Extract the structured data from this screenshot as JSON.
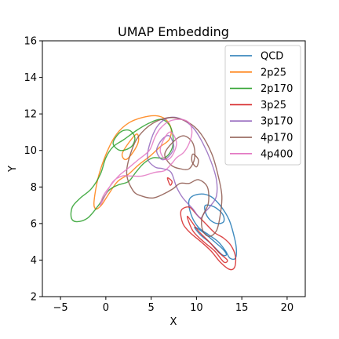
{
  "chart_data": {
    "type": "line",
    "subtype": "kde-contour",
    "title": "UMAP Embedding",
    "xlabel": "X",
    "ylabel": "Y",
    "xlim": [
      -7,
      22
    ],
    "ylim": [
      2,
      16
    ],
    "xticks": [
      -5,
      0,
      5,
      10,
      15,
      20
    ],
    "yticks": [
      2,
      4,
      6,
      8,
      10,
      12,
      14,
      16
    ],
    "grid": false,
    "legend_position": "top-right",
    "series": [
      {
        "name": "QCD",
        "color": "#1f77b4",
        "contours": [
          [
            [
              9.2,
              7.3
            ],
            [
              10.2,
              7.6
            ],
            [
              11.5,
              7.5
            ],
            [
              12.6,
              7.0
            ],
            [
              13.6,
              6.2
            ],
            [
              14.2,
              5.2
            ],
            [
              14.4,
              4.6
            ],
            [
              14.3,
              4.1
            ],
            [
              13.7,
              4.1
            ],
            [
              13.2,
              4.5
            ],
            [
              12.4,
              5.0
            ],
            [
              11.3,
              5.4
            ],
            [
              10.2,
              5.8
            ],
            [
              9.4,
              6.5
            ],
            [
              9.2,
              7.3
            ]
          ],
          [
            [
              11.0,
              7.0
            ],
            [
              12.0,
              6.9
            ],
            [
              12.9,
              6.5
            ],
            [
              13.0,
              6.1
            ],
            [
              12.3,
              6.0
            ],
            [
              11.5,
              6.2
            ],
            [
              11.0,
              6.6
            ],
            [
              11.0,
              7.0
            ]
          ],
          [
            [
              9.8,
              5.8
            ],
            [
              10.8,
              5.5
            ],
            [
              12.0,
              5.0
            ],
            [
              12.9,
              4.6
            ],
            [
              13.3,
              4.3
            ],
            [
              12.8,
              4.3
            ],
            [
              11.6,
              4.9
            ],
            [
              10.4,
              5.4
            ],
            [
              9.8,
              5.8
            ]
          ]
        ]
      },
      {
        "name": "2p25",
        "color": "#ff7f0e",
        "contours": [
          [
            [
              -1.3,
              7.2
            ],
            [
              -0.8,
              8.6
            ],
            [
              0.2,
              10.0
            ],
            [
              1.2,
              10.9
            ],
            [
              2.5,
              11.5
            ],
            [
              4.0,
              11.8
            ],
            [
              5.5,
              11.9
            ],
            [
              6.6,
              11.7
            ],
            [
              7.2,
              11.2
            ],
            [
              7.0,
              10.6
            ],
            [
              6.0,
              10.2
            ],
            [
              4.9,
              9.7
            ],
            [
              3.6,
              9.2
            ],
            [
              2.5,
              8.7
            ],
            [
              1.3,
              8.3
            ],
            [
              0.3,
              7.6
            ],
            [
              -0.5,
              7.0
            ],
            [
              -1.1,
              6.8
            ],
            [
              -1.3,
              7.2
            ]
          ],
          [
            [
              1.8,
              9.8
            ],
            [
              2.5,
              10.4
            ],
            [
              3.4,
              10.9
            ],
            [
              3.6,
              10.5
            ],
            [
              3.0,
              9.9
            ],
            [
              2.2,
              9.5
            ],
            [
              1.8,
              9.8
            ]
          ]
        ]
      },
      {
        "name": "2p170",
        "color": "#2ca02c",
        "contours": [
          [
            [
              -3.8,
              6.3
            ],
            [
              -3.2,
              6.1
            ],
            [
              -2.0,
              6.3
            ],
            [
              -0.8,
              7.0
            ],
            [
              0.3,
              7.8
            ],
            [
              1.3,
              8.1
            ],
            [
              2.5,
              8.3
            ],
            [
              3.3,
              8.8
            ],
            [
              4.2,
              9.3
            ],
            [
              5.2,
              9.6
            ],
            [
              6.5,
              9.6
            ],
            [
              7.3,
              10.1
            ],
            [
              7.4,
              10.8
            ],
            [
              7.0,
              11.4
            ],
            [
              6.1,
              11.7
            ],
            [
              4.8,
              11.5
            ],
            [
              3.4,
              11.1
            ],
            [
              2.0,
              10.6
            ],
            [
              0.8,
              10.2
            ],
            [
              0.0,
              9.6
            ],
            [
              -0.6,
              8.7
            ],
            [
              -1.6,
              7.9
            ],
            [
              -2.8,
              7.4
            ],
            [
              -3.7,
              6.9
            ],
            [
              -3.8,
              6.3
            ]
          ],
          [
            [
              0.8,
              10.4
            ],
            [
              1.6,
              11.0
            ],
            [
              2.6,
              11.1
            ],
            [
              3.2,
              10.7
            ],
            [
              2.8,
              10.2
            ],
            [
              1.6,
              10.0
            ],
            [
              0.8,
              10.4
            ]
          ]
        ]
      },
      {
        "name": "3p25",
        "color": "#d62728",
        "contours": [
          [
            [
              8.3,
              6.7
            ],
            [
              9.2,
              6.9
            ],
            [
              10.0,
              6.5
            ],
            [
              11.0,
              6.0
            ],
            [
              12.0,
              5.5
            ],
            [
              13.0,
              5.2
            ],
            [
              13.8,
              4.8
            ],
            [
              14.3,
              4.2
            ],
            [
              14.2,
              3.6
            ],
            [
              13.6,
              3.5
            ],
            [
              12.6,
              3.9
            ],
            [
              11.6,
              4.5
            ],
            [
              10.5,
              5.0
            ],
            [
              9.3,
              5.5
            ],
            [
              8.5,
              6.0
            ],
            [
              8.3,
              6.7
            ]
          ],
          [
            [
              9.0,
              6.4
            ],
            [
              10.2,
              5.6
            ],
            [
              11.4,
              5.0
            ],
            [
              12.5,
              4.4
            ],
            [
              13.4,
              4.0
            ],
            [
              13.0,
              3.9
            ],
            [
              12.0,
              4.5
            ],
            [
              10.8,
              5.0
            ],
            [
              9.6,
              5.6
            ],
            [
              9.0,
              6.4
            ]
          ],
          [
            [
              6.8,
              8.5
            ],
            [
              7.3,
              8.3
            ],
            [
              7.1,
              8.1
            ],
            [
              6.8,
              8.5
            ]
          ]
        ]
      },
      {
        "name": "3p170",
        "color": "#9467bd",
        "contours": [
          [
            [
              4.6,
              9.6
            ],
            [
              5.0,
              10.6
            ],
            [
              5.8,
              11.4
            ],
            [
              7.0,
              11.8
            ],
            [
              8.4,
              11.7
            ],
            [
              9.7,
              11.2
            ],
            [
              10.7,
              10.4
            ],
            [
              11.6,
              9.4
            ],
            [
              12.2,
              8.4
            ],
            [
              12.2,
              7.5
            ],
            [
              11.6,
              7.0
            ],
            [
              10.9,
              6.6
            ],
            [
              10.4,
              6.3
            ],
            [
              9.6,
              6.8
            ],
            [
              8.5,
              7.4
            ],
            [
              7.8,
              8.0
            ],
            [
              7.2,
              8.8
            ],
            [
              6.3,
              9.0
            ],
            [
              5.4,
              9.1
            ],
            [
              4.6,
              9.6
            ]
          ],
          [
            [
              5.6,
              10.0
            ],
            [
              6.2,
              10.6
            ],
            [
              7.0,
              10.8
            ],
            [
              7.5,
              10.2
            ],
            [
              7.0,
              9.7
            ],
            [
              6.2,
              9.5
            ],
            [
              5.6,
              10.0
            ]
          ]
        ]
      },
      {
        "name": "4p170",
        "color": "#8c564b",
        "contours": [
          [
            [
              2.3,
              8.8
            ],
            [
              3.0,
              10.2
            ],
            [
              4.0,
              11.0
            ],
            [
              5.6,
              11.6
            ],
            [
              7.4,
              11.8
            ],
            [
              9.2,
              11.5
            ],
            [
              10.5,
              10.9
            ],
            [
              11.7,
              9.8
            ],
            [
              12.4,
              8.6
            ],
            [
              12.8,
              7.5
            ],
            [
              12.6,
              6.4
            ],
            [
              12.2,
              5.6
            ],
            [
              11.4,
              5.3
            ],
            [
              10.7,
              5.6
            ],
            [
              10.6,
              6.3
            ],
            [
              11.3,
              7.1
            ],
            [
              11.2,
              8.0
            ],
            [
              10.2,
              8.4
            ],
            [
              9.2,
              8.2
            ],
            [
              8.2,
              8.2
            ],
            [
              7.4,
              7.9
            ],
            [
              6.3,
              7.6
            ],
            [
              5.2,
              7.4
            ],
            [
              4.0,
              7.5
            ],
            [
              3.0,
              7.8
            ],
            [
              2.3,
              8.8
            ]
          ],
          [
            [
              6.5,
              9.8
            ],
            [
              7.5,
              10.5
            ],
            [
              8.6,
              10.8
            ],
            [
              9.6,
              10.4
            ],
            [
              9.8,
              9.6
            ],
            [
              9.2,
              9.0
            ],
            [
              8.2,
              9.0
            ],
            [
              7.2,
              9.2
            ],
            [
              6.5,
              9.8
            ]
          ],
          [
            [
              9.6,
              9.8
            ],
            [
              10.2,
              9.5
            ],
            [
              10.0,
              9.1
            ],
            [
              9.5,
              9.4
            ],
            [
              9.6,
              9.8
            ]
          ]
        ]
      },
      {
        "name": "4p400",
        "color": "#e377c2",
        "contours": [
          [
            [
              -0.6,
              7.0
            ],
            [
              0.0,
              7.6
            ],
            [
              0.8,
              8.3
            ],
            [
              1.8,
              8.6
            ],
            [
              2.8,
              8.6
            ],
            [
              4.0,
              8.6
            ],
            [
              5.4,
              8.8
            ],
            [
              6.5,
              8.9
            ],
            [
              7.3,
              9.3
            ],
            [
              7.8,
              9.6
            ],
            [
              8.6,
              9.9
            ],
            [
              9.2,
              10.4
            ],
            [
              9.5,
              11.0
            ],
            [
              9.2,
              11.5
            ],
            [
              8.3,
              11.7
            ],
            [
              7.0,
              11.6
            ],
            [
              6.0,
              11.2
            ],
            [
              5.4,
              10.7
            ],
            [
              4.8,
              10.0
            ],
            [
              3.6,
              9.5
            ],
            [
              2.4,
              9.0
            ],
            [
              1.4,
              8.6
            ],
            [
              0.4,
              8.0
            ],
            [
              -0.3,
              7.5
            ],
            [
              -0.6,
              7.0
            ]
          ],
          [
            [
              6.0,
              10.0
            ],
            [
              6.5,
              10.7
            ],
            [
              7.2,
              11.0
            ],
            [
              7.8,
              10.4
            ],
            [
              7.3,
              9.7
            ],
            [
              6.6,
              9.5
            ],
            [
              6.0,
              10.0
            ]
          ]
        ]
      }
    ]
  }
}
